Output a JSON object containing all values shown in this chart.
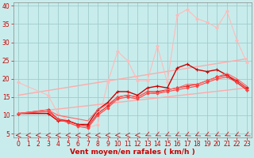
{
  "bg_color": "#c8ecec",
  "grid_color": "#a0cccc",
  "xlabel": "Vent moyen/en rafales ( km/h )",
  "xlim": [
    -0.5,
    23.5
  ],
  "ylim": [
    4,
    41
  ],
  "yticks": [
    5,
    10,
    15,
    20,
    25,
    30,
    35,
    40
  ],
  "xticks": [
    0,
    1,
    2,
    3,
    4,
    5,
    6,
    7,
    8,
    9,
    10,
    11,
    12,
    13,
    14,
    15,
    16,
    17,
    18,
    19,
    20,
    21,
    22,
    23
  ],
  "lines": [
    {
      "x": [
        0,
        23
      ],
      "y": [
        15.5,
        25.5
      ],
      "color": "#ffaaaa",
      "lw": 1.0,
      "marker": null
    },
    {
      "x": [
        0,
        23
      ],
      "y": [
        10.5,
        17.5
      ],
      "color": "#ffaaaa",
      "lw": 1.0,
      "marker": null
    },
    {
      "x": [
        0,
        3,
        4,
        5,
        6,
        7,
        8,
        9,
        10,
        11,
        12,
        13,
        14,
        15,
        16,
        17,
        18,
        19,
        20,
        21,
        22,
        23
      ],
      "y": [
        19.0,
        15.5,
        10.5,
        8.5,
        7.0,
        6.5,
        7.5,
        19.0,
        27.5,
        25.0,
        19.5,
        19.5,
        29.0,
        19.0,
        37.5,
        39.0,
        36.5,
        35.5,
        34.0,
        38.5,
        30.5,
        24.5
      ],
      "color": "#ffbbbb",
      "lw": 0.8,
      "marker": "D",
      "ms": 1.8
    },
    {
      "x": [
        0,
        3,
        4,
        5,
        6,
        7,
        8,
        9,
        10,
        11,
        12,
        13,
        14,
        15,
        16,
        17,
        18,
        19,
        20,
        21,
        22,
        23
      ],
      "y": [
        10.5,
        10.5,
        8.5,
        8.5,
        7.5,
        7.5,
        11.5,
        13.5,
        16.5,
        16.5,
        15.5,
        17.5,
        18.0,
        17.5,
        23.0,
        24.0,
        22.5,
        22.0,
        22.5,
        21.0,
        19.0,
        17.0
      ],
      "color": "#cc0000",
      "lw": 1.0,
      "marker": "+",
      "ms": 3.5
    },
    {
      "x": [
        0,
        3,
        4,
        5,
        6,
        7,
        8,
        9,
        10,
        11,
        12,
        13,
        14,
        15,
        16,
        17,
        18,
        19,
        20,
        21,
        22,
        23
      ],
      "y": [
        10.5,
        11.5,
        9.0,
        8.5,
        7.5,
        7.0,
        10.5,
        12.5,
        15.0,
        15.5,
        15.0,
        16.5,
        16.5,
        17.0,
        17.5,
        18.0,
        18.5,
        19.5,
        20.5,
        21.0,
        19.5,
        17.5
      ],
      "color": "#ee2222",
      "lw": 0.8,
      "marker": "D",
      "ms": 1.8
    },
    {
      "x": [
        0,
        3,
        4,
        5,
        6,
        7,
        8,
        9,
        10,
        11,
        12,
        13,
        14,
        15,
        16,
        17,
        18,
        19,
        20,
        21,
        22,
        23
      ],
      "y": [
        10.5,
        11.0,
        9.0,
        8.0,
        7.0,
        6.5,
        10.0,
        12.0,
        14.5,
        15.0,
        14.5,
        16.0,
        16.0,
        16.5,
        17.0,
        17.5,
        18.0,
        19.0,
        20.0,
        20.5,
        19.0,
        17.0
      ],
      "color": "#ff4444",
      "lw": 0.8,
      "marker": "D",
      "ms": 1.5
    },
    {
      "x": [
        0,
        3,
        4,
        5,
        6,
        7,
        8,
        9,
        10,
        11,
        12,
        13,
        14,
        15,
        16,
        17,
        18,
        19,
        20,
        21,
        22,
        23
      ],
      "y": [
        10.5,
        11.5,
        10.0,
        9.5,
        9.0,
        8.5,
        11.5,
        13.0,
        15.0,
        15.5,
        15.0,
        16.5,
        16.0,
        17.0,
        17.5,
        18.5,
        18.5,
        19.5,
        20.5,
        21.5,
        20.0,
        18.0
      ],
      "color": "#ff6666",
      "lw": 0.8,
      "marker": null
    }
  ],
  "arrow_color": "#cc0000",
  "xlabel_color": "#cc0000",
  "xlabel_fontsize": 6.5,
  "tick_fontsize": 5.5,
  "tick_color": "#cc0000"
}
